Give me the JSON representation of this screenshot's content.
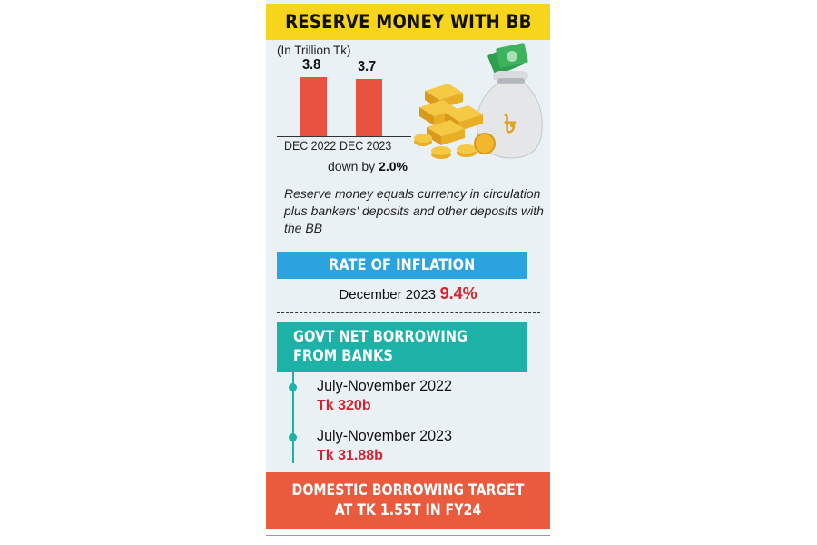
{
  "title": "RESERVE MONEY WITH BB",
  "chart_data": {
    "type": "bar",
    "unit_label": "(In Trillion Tk)",
    "categories": [
      "DEC 2022",
      "DEC 2023"
    ],
    "values": [
      3.8,
      3.7
    ],
    "value_labels": [
      "3.8",
      "3.7"
    ],
    "ylim": [
      0,
      4.2
    ],
    "change_prefix": "down by",
    "change_value": "2.0%",
    "bar_color": "#e8533f"
  },
  "note": "Reserve money equals currency in circulation plus bankers' deposits and other deposits with the BB",
  "inflation": {
    "title": "RATE OF INFLATION",
    "period": "December 2023",
    "value": "9.4%"
  },
  "borrowing": {
    "title_line1": "GOVT NET BORROWING",
    "title_line2": "FROM BANKS",
    "items": [
      {
        "period": "July-November 2022",
        "amount": "Tk 320b"
      },
      {
        "period": "July-November 2023",
        "amount": "Tk 31.88b"
      }
    ]
  },
  "target": {
    "line1": "DOMESTIC BORROWING TARGET",
    "line2": "AT TK 1.55T IN FY24"
  },
  "colors": {
    "title_bg": "#f7d51d",
    "inflation_bg": "#2aa3de",
    "borrowing_bg": "#1cb2a8",
    "target_bg": "#ea5b3e",
    "highlight_red": "#d8222f"
  },
  "illustration": {
    "icons": [
      "money-bag-icon",
      "gold-bars-icon",
      "coins-icon",
      "banknotes-icon"
    ],
    "bag_symbol": "৳"
  }
}
